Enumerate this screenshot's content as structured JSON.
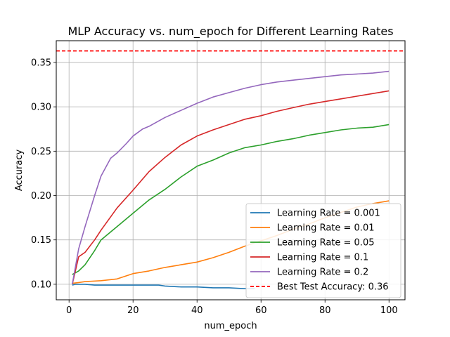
{
  "chart_data": {
    "type": "line",
    "title": "MLP Accuracy vs. num_epoch for Different Learning Rates",
    "xlabel": "num_epoch",
    "ylabel": "Accuracy",
    "xlim": [
      -4,
      105
    ],
    "ylim": [
      0.0825,
      0.3745
    ],
    "xticks": [
      0,
      20,
      40,
      60,
      80,
      100
    ],
    "yticks": [
      0.1,
      0.15,
      0.2,
      0.25,
      0.3,
      0.35
    ],
    "xtick_labels": [
      "0",
      "20",
      "40",
      "60",
      "80",
      "100"
    ],
    "ytick_labels": [
      "0.10",
      "0.15",
      "0.20",
      "0.25",
      "0.30",
      "0.35"
    ],
    "grid": true,
    "legend_position": "lower right",
    "series": [
      {
        "name": "Learning Rate = 0.001",
        "color": "#1f77b4",
        "x": [
          1,
          2,
          3,
          5,
          8,
          10,
          15,
          20,
          25,
          28,
          30,
          35,
          40,
          45,
          50,
          55,
          58
        ],
        "y": [
          0.099,
          0.1,
          0.1,
          0.1,
          0.099,
          0.099,
          0.099,
          0.099,
          0.099,
          0.099,
          0.098,
          0.097,
          0.097,
          0.096,
          0.096,
          0.095,
          0.095
        ]
      },
      {
        "name": "Learning Rate = 0.01",
        "color": "#ff7f0e",
        "x": [
          1,
          3,
          5,
          10,
          15,
          20,
          25,
          30,
          35,
          40,
          45,
          50,
          55,
          60,
          65,
          70,
          75,
          80,
          85,
          90,
          95,
          100
        ],
        "y": [
          0.101,
          0.102,
          0.103,
          0.104,
          0.106,
          0.112,
          0.115,
          0.119,
          0.122,
          0.125,
          0.13,
          0.136,
          0.143,
          0.149,
          0.155,
          0.162,
          0.168,
          0.175,
          0.181,
          0.187,
          0.191,
          0.194
        ]
      },
      {
        "name": "Learning Rate = 0.05",
        "color": "#2ca02c",
        "x": [
          1,
          3,
          5,
          8,
          10,
          15,
          20,
          25,
          30,
          35,
          40,
          45,
          50,
          55,
          60,
          65,
          70,
          75,
          80,
          85,
          90,
          95,
          100
        ],
        "y": [
          0.111,
          0.115,
          0.122,
          0.138,
          0.15,
          0.165,
          0.18,
          0.195,
          0.207,
          0.221,
          0.233,
          0.24,
          0.248,
          0.254,
          0.257,
          0.261,
          0.264,
          0.268,
          0.271,
          0.274,
          0.276,
          0.277,
          0.28
        ]
      },
      {
        "name": "Learning Rate = 0.1",
        "color": "#d62728",
        "x": [
          1,
          3,
          5,
          8,
          10,
          15,
          20,
          25,
          30,
          35,
          40,
          45,
          50,
          55,
          60,
          65,
          70,
          75,
          80,
          85,
          90,
          95,
          100
        ],
        "y": [
          0.1,
          0.131,
          0.136,
          0.15,
          0.161,
          0.186,
          0.206,
          0.227,
          0.243,
          0.257,
          0.267,
          0.274,
          0.28,
          0.286,
          0.29,
          0.295,
          0.299,
          0.303,
          0.306,
          0.309,
          0.312,
          0.315,
          0.318
        ]
      },
      {
        "name": "Learning Rate = 0.2",
        "color": "#9467bd",
        "x": [
          1,
          3,
          5,
          8,
          10,
          13,
          15,
          18,
          20,
          23,
          25,
          30,
          35,
          40,
          45,
          50,
          55,
          60,
          65,
          70,
          75,
          80,
          85,
          90,
          95,
          100
        ],
        "y": [
          0.1,
          0.14,
          0.165,
          0.2,
          0.222,
          0.242,
          0.248,
          0.259,
          0.267,
          0.275,
          0.278,
          0.288,
          0.296,
          0.304,
          0.311,
          0.316,
          0.321,
          0.325,
          0.328,
          0.33,
          0.332,
          0.334,
          0.336,
          0.337,
          0.338,
          0.34
        ]
      }
    ],
    "reference_lines": [
      {
        "name": "Best Test Accuracy: 0.36",
        "y": 0.363,
        "color": "#ff0000",
        "style": "dashed"
      }
    ]
  }
}
